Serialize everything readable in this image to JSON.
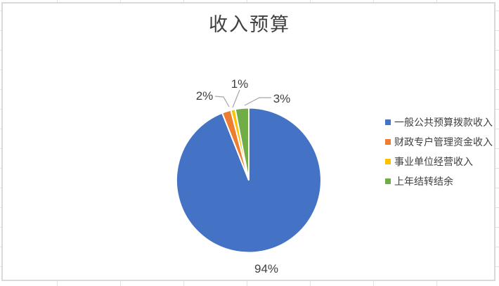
{
  "chart_data": {
    "type": "pie",
    "title": "收入预算",
    "legend_position": "right",
    "start_angle_deg": 0,
    "direction": "clockwise",
    "slices": [
      {
        "name": "一般公共预算拨款收入",
        "value": 94,
        "label": "94%",
        "color": "#4472c4"
      },
      {
        "name": "财政专户管理资金收入",
        "value": 2,
        "label": "2%",
        "color": "#ed7d31"
      },
      {
        "name": "事业单位经营收入",
        "value": 1,
        "label": "1%",
        "color": "#ffc000"
      },
      {
        "name": "上年结转结余",
        "value": 3,
        "label": "3%",
        "color": "#70ad47"
      }
    ]
  },
  "colors": {
    "leader_line": "#a6a6a6",
    "chart_border": "#d9d9d9",
    "gridline": "#e2e2e2",
    "label_text": "#404040",
    "slice_separator": "#ffffff"
  }
}
